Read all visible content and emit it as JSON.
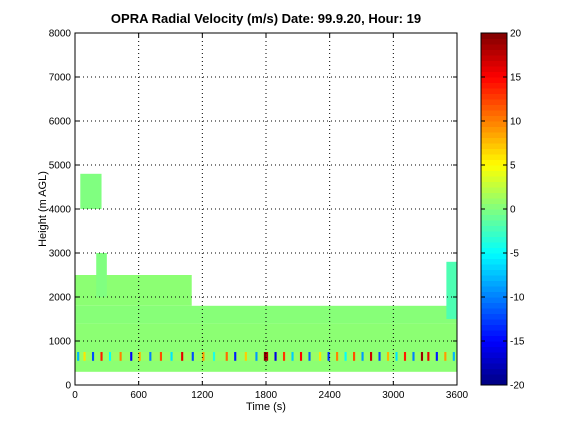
{
  "chart_data": {
    "type": "heatmap",
    "title": "OPRA Radial Velocity (m/s)  Date: 99.9.20, Hour: 19",
    "xlabel": "Time (s)",
    "ylabel": "Height (m AGL)",
    "xlim": [
      0,
      3600
    ],
    "ylim": [
      0,
      8000
    ],
    "x_ticks": [
      "0",
      "600",
      "1200",
      "1800",
      "2400",
      "3000",
      "3600"
    ],
    "y_ticks": [
      "0",
      "1000",
      "2000",
      "3000",
      "4000",
      "5000",
      "6000",
      "7000",
      "8000"
    ],
    "x_tick_values": [
      0,
      600,
      1200,
      1800,
      2400,
      3000,
      3600
    ],
    "y_tick_values": [
      0,
      1000,
      2000,
      3000,
      4000,
      5000,
      6000,
      7000,
      8000
    ],
    "grid": true,
    "colorbar": {
      "limits": [
        -20,
        20
      ],
      "tick_values": [
        20,
        15,
        10,
        5,
        0,
        -5,
        -10,
        -15,
        -20
      ],
      "tick_labels": [
        "20",
        "15",
        "10",
        "5",
        "0",
        "-5",
        "-10",
        "-15",
        "-20"
      ],
      "colormap": "jet"
    },
    "regions": [
      {
        "x": [
          0,
          3600
        ],
        "y": [
          300,
          1400
        ],
        "value": 0.5
      },
      {
        "x": [
          0,
          3600
        ],
        "y": [
          1400,
          1800
        ],
        "value": 0.3
      },
      {
        "x": [
          0,
          1100
        ],
        "y": [
          1800,
          2500
        ],
        "value": 0.5
      },
      {
        "x": [
          50,
          250
        ],
        "y": [
          4000,
          4800
        ],
        "value": 0
      },
      {
        "x": [
          200,
          300
        ],
        "y": [
          2000,
          3000
        ],
        "value": 0
      },
      {
        "x": [
          3500,
          3600
        ],
        "y": [
          1500,
          2800
        ],
        "value": -2
      }
    ],
    "band": {
      "y": [
        550,
        750
      ],
      "x_step": 20,
      "background_value": 1,
      "spikes": [
        {
          "x": 20,
          "value": -8
        },
        {
          "x": 80,
          "value": 6
        },
        {
          "x": 160,
          "value": -12
        },
        {
          "x": 240,
          "value": 14
        },
        {
          "x": 320,
          "value": -5
        },
        {
          "x": 420,
          "value": 10
        },
        {
          "x": 520,
          "value": -15
        },
        {
          "x": 600,
          "value": 8
        },
        {
          "x": 700,
          "value": -10
        },
        {
          "x": 800,
          "value": 12
        },
        {
          "x": 900,
          "value": -6
        },
        {
          "x": 1000,
          "value": 16
        },
        {
          "x": 1100,
          "value": -12
        },
        {
          "x": 1200,
          "value": 9
        },
        {
          "x": 1300,
          "value": -4
        },
        {
          "x": 1420,
          "value": 11
        },
        {
          "x": 1500,
          "value": -14
        },
        {
          "x": 1600,
          "value": 7
        },
        {
          "x": 1700,
          "value": -9
        },
        {
          "x": 1780,
          "value": 20
        },
        {
          "x": 1800,
          "value": 18
        },
        {
          "x": 1880,
          "value": -16
        },
        {
          "x": 1960,
          "value": 13
        },
        {
          "x": 2040,
          "value": -7
        },
        {
          "x": 2120,
          "value": 15
        },
        {
          "x": 2200,
          "value": -11
        },
        {
          "x": 2300,
          "value": 6
        },
        {
          "x": 2380,
          "value": -13
        },
        {
          "x": 2460,
          "value": 10
        },
        {
          "x": 2540,
          "value": -5
        },
        {
          "x": 2620,
          "value": 12
        },
        {
          "x": 2700,
          "value": -9
        },
        {
          "x": 2780,
          "value": 17
        },
        {
          "x": 2860,
          "value": -12
        },
        {
          "x": 2940,
          "value": 8
        },
        {
          "x": 3020,
          "value": -6
        },
        {
          "x": 3100,
          "value": 14
        },
        {
          "x": 3180,
          "value": -10
        },
        {
          "x": 3260,
          "value": 19
        },
        {
          "x": 3320,
          "value": 16
        },
        {
          "x": 3400,
          "value": -14
        },
        {
          "x": 3480,
          "value": 9
        },
        {
          "x": 3560,
          "value": -8
        }
      ]
    }
  }
}
